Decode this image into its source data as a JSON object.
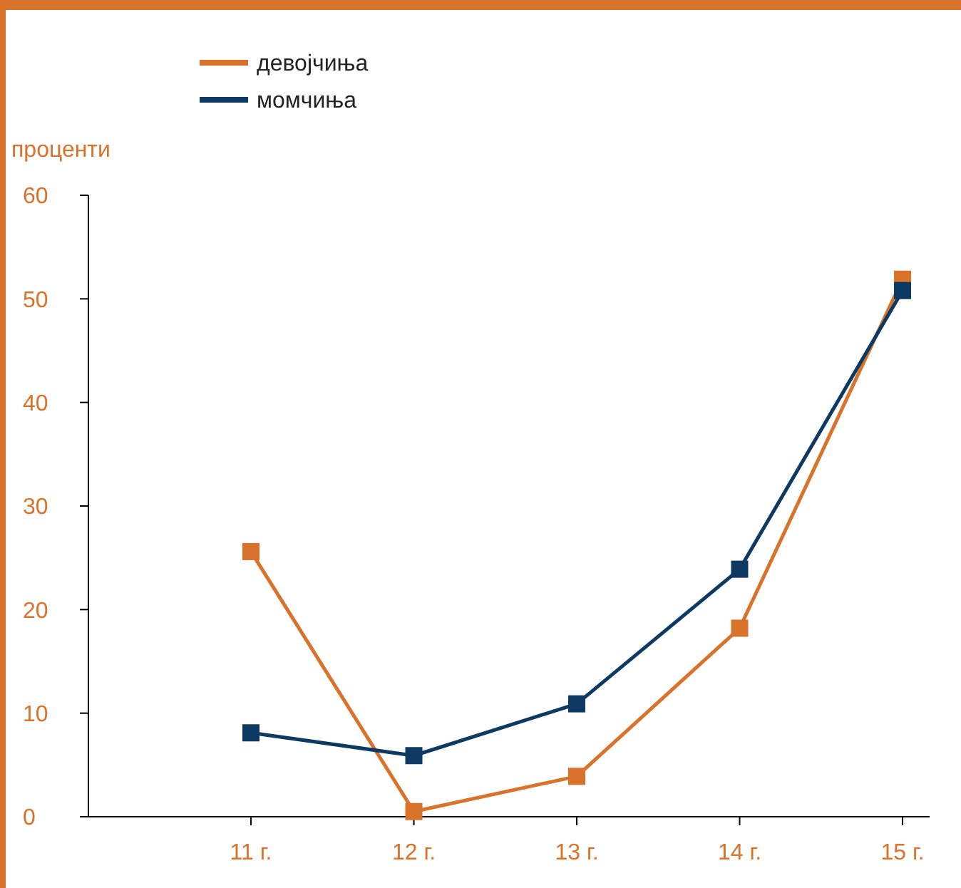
{
  "chart_data": {
    "type": "line",
    "ylabel": "проценти",
    "categories": [
      "11 г.",
      "12 г.",
      "13 г.",
      "14 г.",
      "15 г."
    ],
    "series": [
      {
        "name": "девојчиња",
        "color": "#d9722b",
        "values": [
          25.6,
          0.5,
          3.9,
          18.2,
          51.9
        ]
      },
      {
        "name": "момчиња",
        "color": "#0d3a63",
        "values": [
          8.1,
          5.9,
          10.9,
          23.9,
          50.8
        ]
      }
    ],
    "ylim": [
      0,
      60
    ],
    "yticks": [
      0,
      10,
      20,
      30,
      40,
      50,
      60
    ],
    "grid": false,
    "legend": "top left",
    "marker": "square",
    "line_style": "solid"
  }
}
